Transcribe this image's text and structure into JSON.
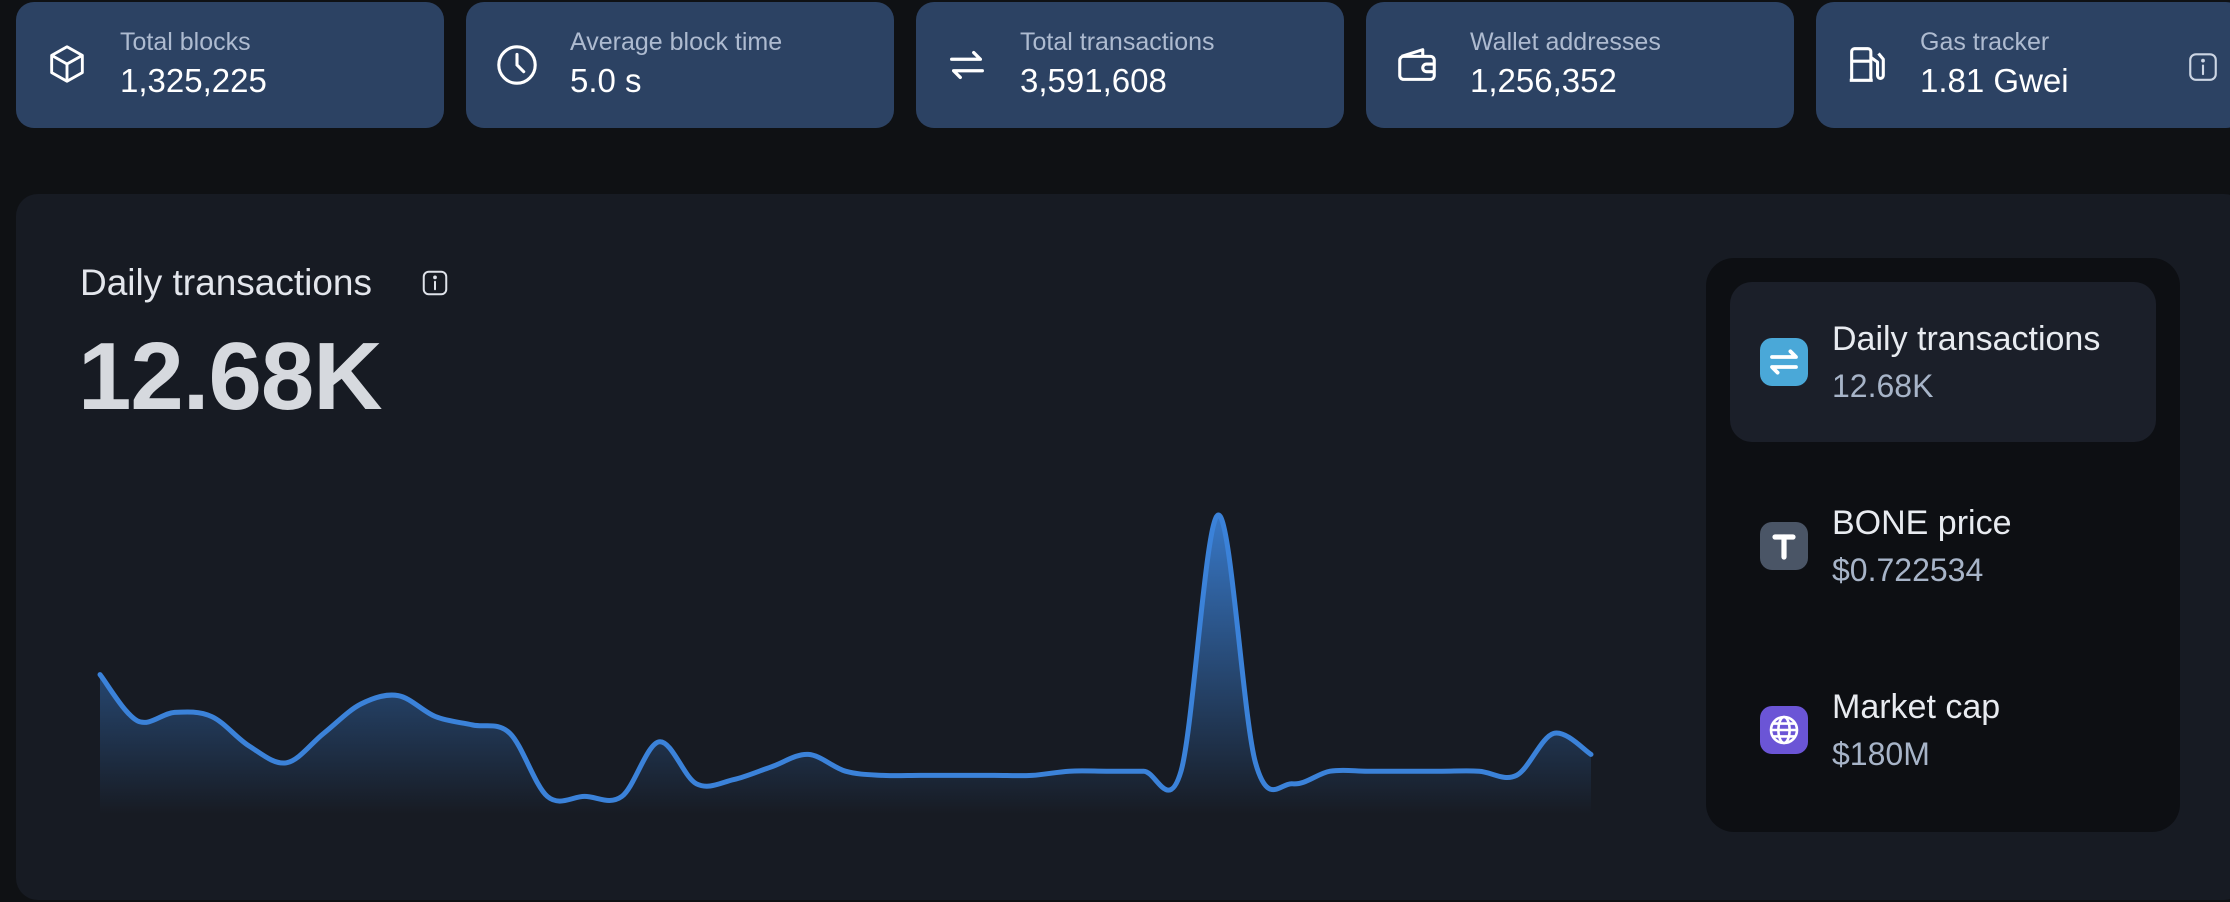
{
  "stats": [
    {
      "icon": "cube-icon",
      "label": "Total blocks",
      "value": "1,325,225"
    },
    {
      "icon": "clock-icon",
      "label": "Average block time",
      "value": "5.0 s"
    },
    {
      "icon": "swap-arrows-icon",
      "label": "Total transactions",
      "value": "3,591,608"
    },
    {
      "icon": "wallet-icon",
      "label": "Wallet addresses",
      "value": "1,256,352"
    },
    {
      "icon": "gas-pump-icon",
      "label": "Gas tracker",
      "value": "1.81 Gwei",
      "extra_icon": "info-icon"
    }
  ],
  "chart_section": {
    "title": "Daily transactions",
    "title_icon": "info-icon",
    "value": "12.68K"
  },
  "chart_data": {
    "type": "area",
    "title": "",
    "xlabel": "",
    "ylabel": "",
    "grid": false,
    "legend": "none",
    "series_color": "#3b82d9",
    "values": [
      12.2,
      11.1,
      11.3,
      11.2,
      10.5,
      10.1,
      10.8,
      11.5,
      11.7,
      11.2,
      11.0,
      10.8,
      9.3,
      9.3,
      9.3,
      10.6,
      9.6,
      9.7,
      10.0,
      10.3,
      9.9,
      9.8,
      9.8,
      9.8,
      9.8,
      9.8,
      9.9,
      9.9,
      9.9,
      9.9,
      16.0,
      10.1,
      9.6,
      9.9,
      9.9,
      9.9,
      9.9,
      9.9,
      9.8,
      10.8,
      10.3
    ],
    "ylim": [
      8.5,
      16.5
    ]
  },
  "side_metrics": [
    {
      "icon": "swap-arrows-icon",
      "label": "Daily transactions",
      "value": "12.68K",
      "active": true,
      "icon_color": "#4aa8d8"
    },
    {
      "icon": "bone-token-icon",
      "label": "BONE price",
      "value": "$0.722534",
      "active": false,
      "icon_color": "#4a5566"
    },
    {
      "icon": "globe-icon",
      "label": "Market cap",
      "value": "$180M",
      "active": false,
      "icon_color": "#6b55d6"
    }
  ]
}
